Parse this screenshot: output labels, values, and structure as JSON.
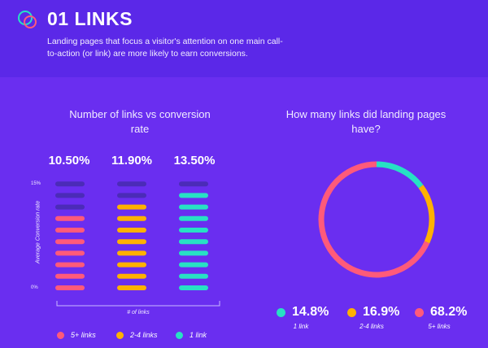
{
  "header": {
    "title": "01 LINKS",
    "subtitle": "Landing pages that focus a visitor's attention on one main call-to-action (or link) are more likely to earn conversions."
  },
  "chart_data": [
    {
      "type": "bar",
      "title": "Number of links vs conversion rate",
      "xlabel": "# of links",
      "ylabel": "Average Conversion rate",
      "yticks": [
        "15%",
        "0%"
      ],
      "ylim": [
        0,
        15
      ],
      "categories": [
        "5+ links",
        "2-4 links",
        "1 link"
      ],
      "values": [
        10.5,
        11.9,
        13.5
      ],
      "value_labels": [
        "10.50%",
        "11.90%",
        "13.50%"
      ],
      "colors": [
        "#ff5a7a",
        "#ffb100",
        "#27e1c4"
      ],
      "empty_color": "#4b2bb8",
      "legend": [
        {
          "label": "5+ links",
          "color": "#ff5a7a"
        },
        {
          "label": "2-4 links",
          "color": "#ffb100"
        },
        {
          "label": "1 link",
          "color": "#27e1c4"
        }
      ]
    },
    {
      "type": "pie",
      "title": "How many links did landing pages have?",
      "slices": [
        {
          "value_label": "14.8%",
          "value": 14.8,
          "label": "1 link",
          "color": "#27e1c4"
        },
        {
          "value_label": "16.9%",
          "value": 16.9,
          "label": "2-4 links",
          "color": "#ffb100"
        },
        {
          "value_label": "68.2%",
          "value": 68.2,
          "label": "5+ links",
          "color": "#ff5a7a"
        }
      ]
    }
  ]
}
